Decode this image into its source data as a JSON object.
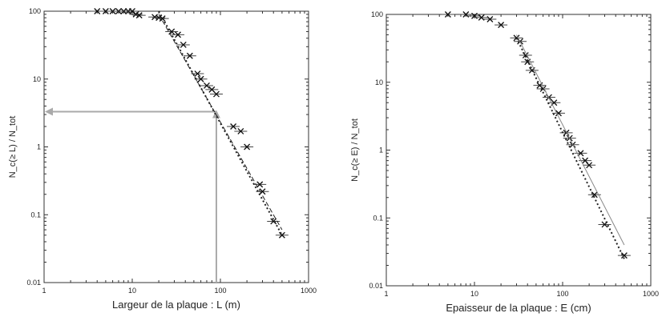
{
  "chart_data": [
    {
      "type": "scatter",
      "title": "",
      "xlabel": "Largeur de la plaque : L (m)",
      "ylabel": "N_c(≥ L) / N_tot",
      "xscale": "log",
      "yscale": "log",
      "xlim": [
        1,
        1000
      ],
      "ylim": [
        0.01,
        100
      ],
      "xticks": [
        "1",
        "10",
        "100",
        "1000"
      ],
      "yticks": [
        "0.01",
        "0.1",
        "1",
        "10",
        "100"
      ],
      "grid": false,
      "legend": "none",
      "series": [
        {
          "marker": "x-with-error-bar",
          "x": [
            4,
            5,
            6,
            7,
            8,
            9,
            10,
            11,
            12,
            18,
            20,
            22,
            28,
            33,
            38,
            45,
            55,
            60,
            70,
            80,
            90,
            140,
            170,
            200,
            280,
            300,
            400,
            500
          ],
          "y": [
            100,
            100,
            100,
            100,
            100,
            100,
            100,
            90,
            87,
            82,
            80,
            78,
            50,
            45,
            32,
            22,
            12,
            10,
            8,
            7,
            6,
            2,
            1.7,
            1,
            0.28,
            0.22,
            0.08,
            0.05
          ]
        },
        {
          "style": "dotted-fit",
          "x": [
            20,
            500
          ],
          "y": [
            100,
            0.05
          ]
        },
        {
          "style": "dashed-fit",
          "x": [
            20,
            500
          ],
          "y": [
            90,
            0.06
          ]
        }
      ],
      "annotation": {
        "style": "gray-arrows",
        "x": 90,
        "y": 3.3
      }
    },
    {
      "type": "scatter",
      "title": "",
      "xlabel": "Epaisseur de la plaque : E (cm)",
      "ylabel": "N_c(≥ E) / N_tot",
      "xscale": "log",
      "yscale": "log",
      "xlim": [
        1,
        1000
      ],
      "ylim": [
        0.01,
        100
      ],
      "xticks": [
        "1",
        "10",
        "100",
        "1000"
      ],
      "yticks": [
        "0.01",
        "0.1",
        "1",
        "10",
        "100"
      ],
      "grid": false,
      "legend": "none",
      "series": [
        {
          "marker": "x-with-error-bar",
          "x": [
            5,
            8,
            10,
            12,
            15,
            20,
            30,
            33,
            38,
            40,
            45,
            55,
            60,
            70,
            80,
            90,
            110,
            120,
            130,
            160,
            180,
            200,
            230,
            300,
            500
          ],
          "y": [
            100,
            100,
            95,
            90,
            85,
            70,
            45,
            40,
            25,
            20,
            15,
            9,
            8,
            6,
            5,
            3.5,
            1.8,
            1.5,
            1.2,
            0.9,
            0.7,
            0.6,
            0.22,
            0.08,
            0.028
          ]
        },
        {
          "style": "dotted-fit",
          "x": [
            30,
            500
          ],
          "y": [
            45,
            0.025
          ]
        },
        {
          "style": "solid-fit",
          "x": [
            30,
            500
          ],
          "y": [
            50,
            0.04
          ]
        }
      ]
    }
  ]
}
